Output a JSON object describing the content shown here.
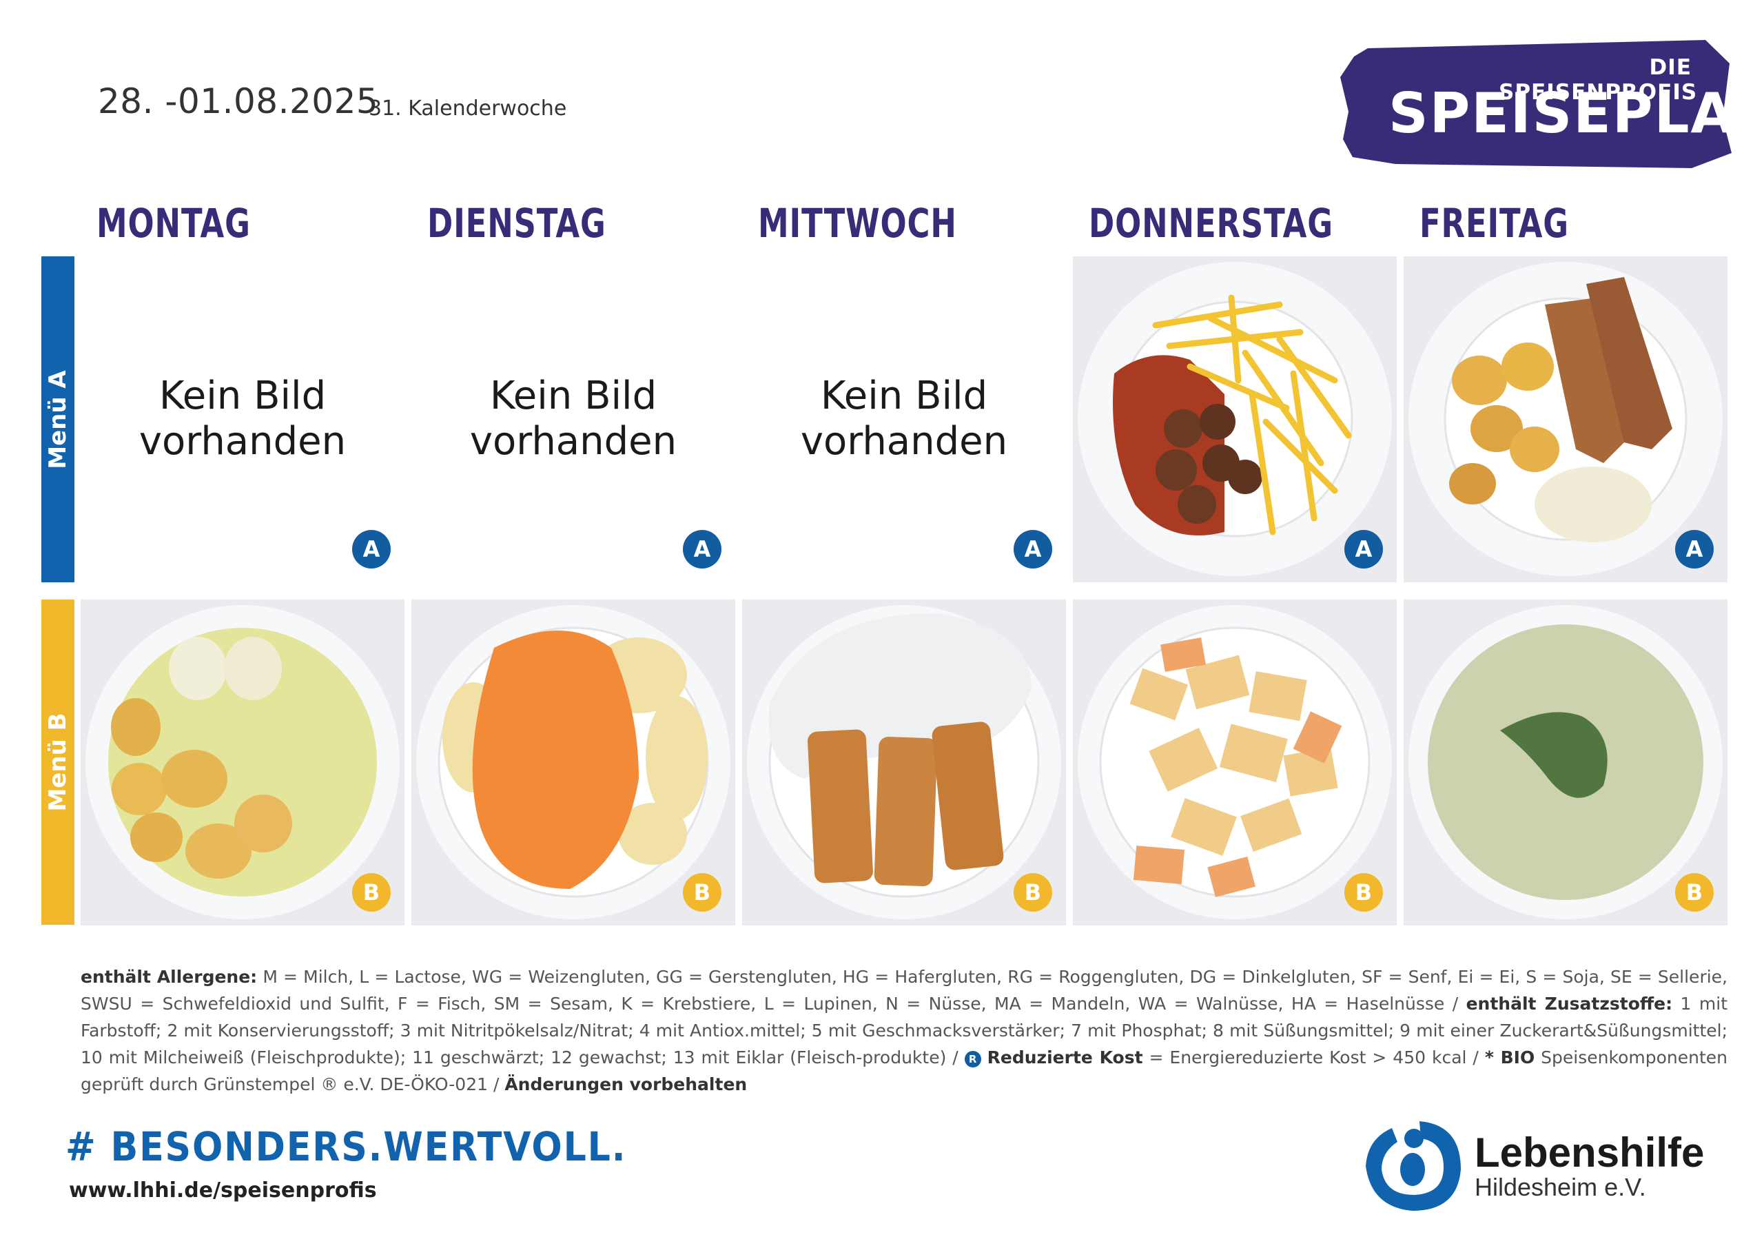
{
  "header": {
    "date_range": "28. -01.08.2025",
    "calendar_week": "31. Kalenderwoche"
  },
  "brand": {
    "top": "DIE SPEISENPROFIS",
    "main": "SPEISEPLAN",
    "blob_color": "#3a2b78"
  },
  "days": [
    "MONTAG",
    "DIENSTAG",
    "MITTWOCH",
    "DONNERSTAG",
    "FREITAG"
  ],
  "menus": {
    "a_label": "Menü A",
    "b_label": "Menü B",
    "a_badge": "A",
    "b_badge": "B",
    "a_color": "#1163ad",
    "b_color": "#f2b82c",
    "no_image_line1": "Kein Bild",
    "no_image_line2": "vorhanden"
  },
  "footer": {
    "allergens_heading": "enthält Allergene:",
    "allergens_text": "M = Milch, L = Lactose, WG = Weizengluten, GG = Gerstengluten, HG = Hafergluten, RG = Roggengluten, DG = Dinkelgluten, SF = Senf, Ei = Ei, S = Soja, SE = Sellerie, SWSU = Schwefeldioxid und Sulfit, F = Fisch, SM = Sesam, K = Krebstiere, L = Lupinen, N = Nüsse, MA = Mandeln, WA = Walnüsse, HA =  Haselnüsse / ",
    "additives_heading": "enthält Zusatzstoffe:",
    "additives_text": " 1 mit Farbstoff; 2 mit Konservierungsstoff; 3 mit Nitritpökelsalz/Nitrat; 4 mit Antiox.mittel; 5 mit Geschmacksverstärker; 7 mit Phosphat; 8 mit Süßungsmittel; 9 mit einer Zuckerart&Süßungsmittel; 10 mit Milcheiweiß (Fleischprodukte); 11 geschwärzt; 12 gewachst; 13 mit Eiklar (Fleisch-produkte) / ",
    "reduced_icon": "R",
    "reduced_heading": "Reduzierte Kost",
    "reduced_text": " = Energiereduzierte Kost > 450 kcal / ",
    "bio_heading": "* BIO",
    "bio_text": " Speisenkomponenten geprüft durch Grünstempel ® e.V. DE-ÖKO-021 / ",
    "changes": "Änderungen vorbehalten",
    "hashtag": "# BESONDERS.WERTVOLL.",
    "url": "www.lhhi.de/speisenprofis",
    "logo_name": "Lebenshilfe",
    "logo_sub": "Hildesheim e.V."
  }
}
